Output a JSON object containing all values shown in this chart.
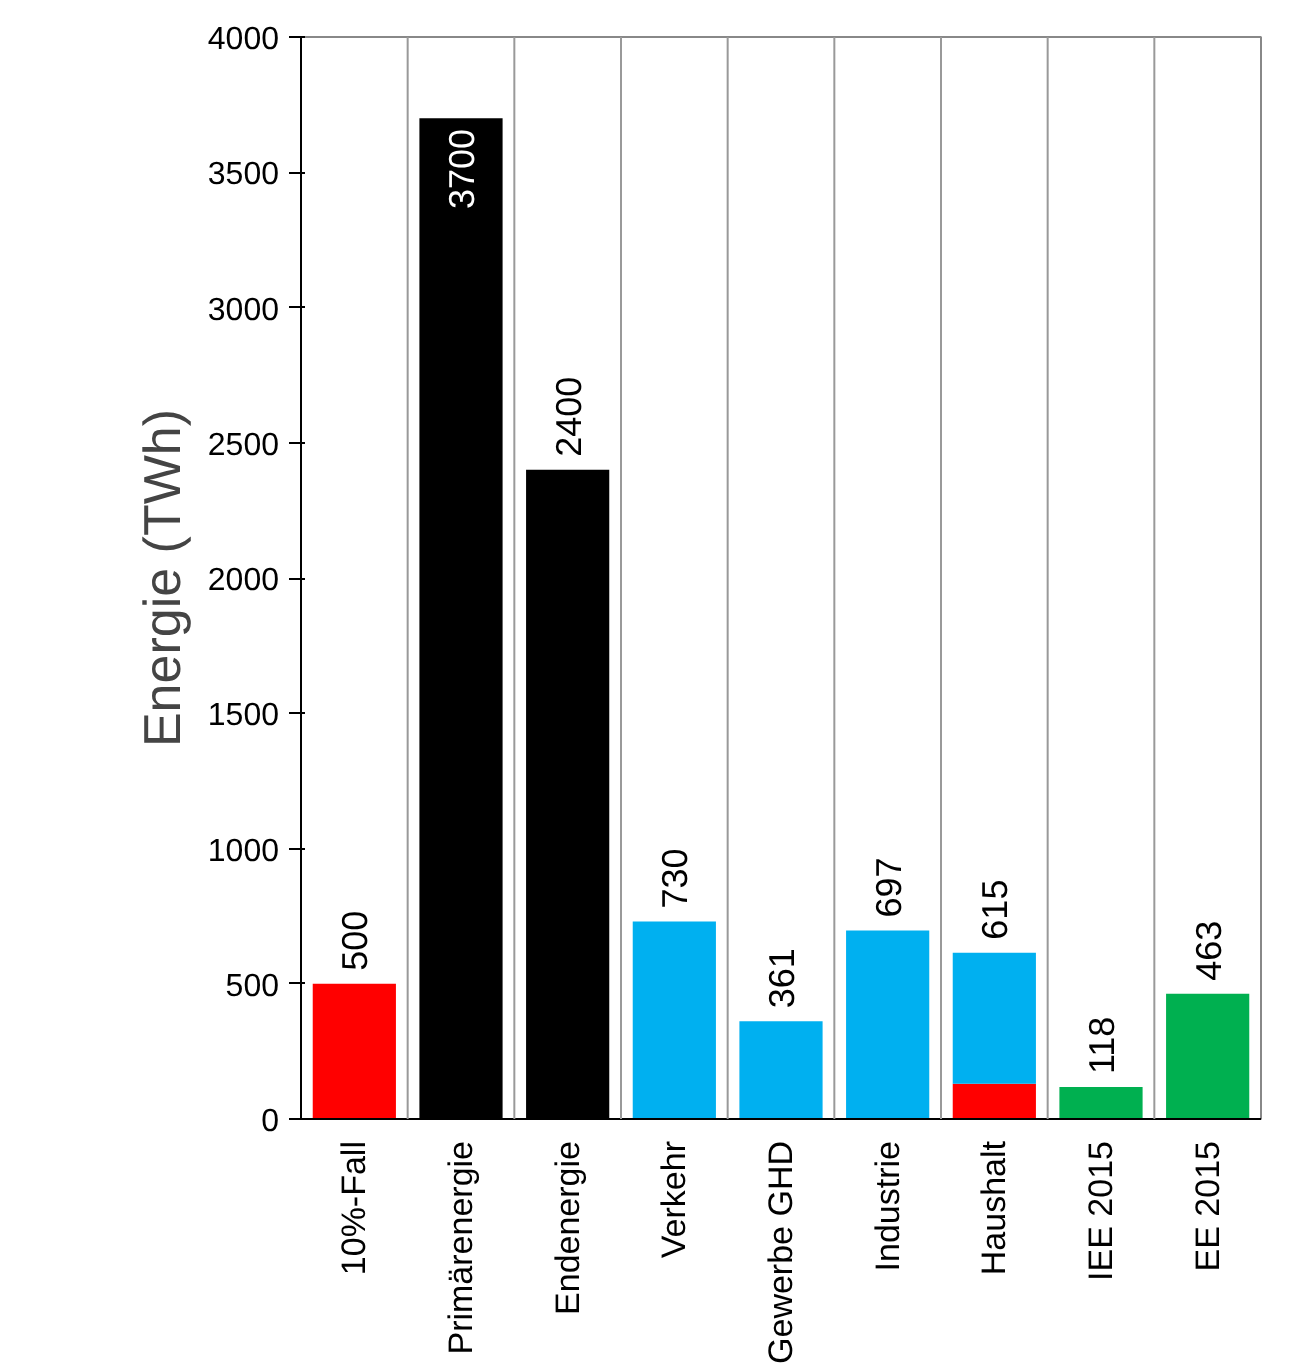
{
  "chart_data": {
    "type": "bar",
    "stacked": true,
    "ylabel": "Energie (TWh)",
    "categories": [
      "10%-Fall",
      "Primärenergie",
      "Endenergie",
      "Verkehr",
      "Gewerbe GHD",
      "Industrie",
      "Haushalt",
      "IEE 2015",
      "EE 2015"
    ],
    "series": [
      {
        "values": [
          500,
          3700,
          2400,
          730,
          361,
          697,
          130,
          118,
          463
        ],
        "colors": [
          "#ff0000",
          "#000000",
          "#000000",
          "#00b0f0",
          "#00b0f0",
          "#00b0f0",
          "#ff0000",
          "#00b050",
          "#00b050"
        ]
      },
      {
        "color": "#00b0f0",
        "values": [
          null,
          null,
          null,
          null,
          null,
          null,
          485,
          null,
          null
        ]
      }
    ],
    "totals": [
      "500",
      "3700",
      "2400",
      "730",
      "361",
      "697",
      "615",
      "118",
      "463"
    ],
    "ylim": [
      0,
      4000
    ],
    "yticks": [
      0,
      500,
      1000,
      1500,
      2000,
      2500,
      3000,
      3500,
      4000
    ],
    "grid": "x"
  }
}
